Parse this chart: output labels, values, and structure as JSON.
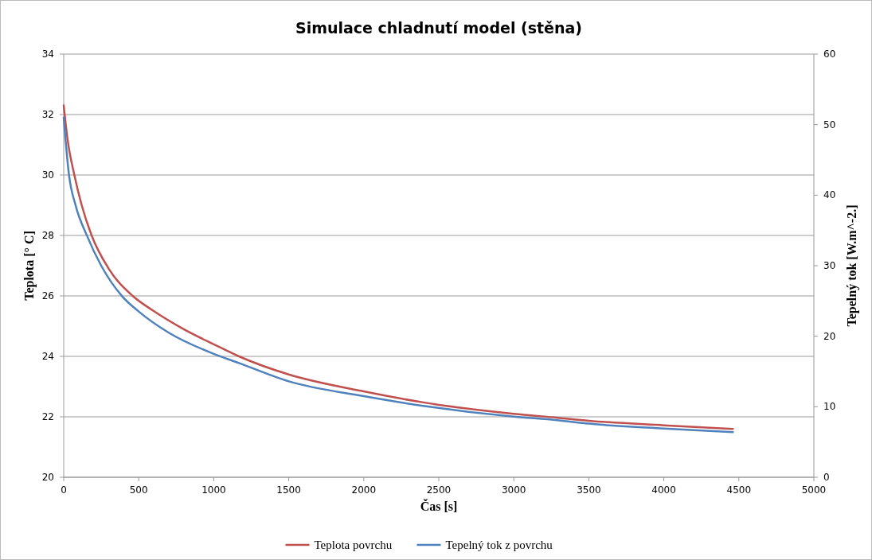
{
  "chart_data": {
    "type": "line",
    "title": "Simulace chladnutí model (stěna)",
    "xlabel": "Čas [s]",
    "ylabel": "Teplota [° C]",
    "y2label": "Tepelný tok [W.m^-2.]",
    "xlim": [
      0,
      5000
    ],
    "xticks": [
      0,
      500,
      1000,
      1500,
      2000,
      2500,
      3000,
      3500,
      4000,
      4500,
      5000
    ],
    "ylim": [
      20,
      34
    ],
    "yticks": [
      20,
      22,
      24,
      26,
      28,
      30,
      32,
      34
    ],
    "y2lim": [
      0,
      60
    ],
    "y2ticks": [
      0,
      10,
      20,
      30,
      40,
      50,
      60
    ],
    "grid": "y",
    "legend": "bottom",
    "marker": "none",
    "line_style": "solid",
    "series": [
      {
        "name": "Teplota povrchu",
        "color": "#c0504d",
        "x": [
          0,
          25,
          71,
          120,
          186,
          300,
          460,
          600,
          800,
          1000,
          1168,
          1500,
          2000,
          2405,
          3000,
          3291,
          3500,
          4000,
          4460
        ],
        "values": [
          32.3,
          31.2,
          30,
          29,
          28,
          26.9,
          26,
          25.5,
          24.9,
          24.4,
          24,
          23.4,
          22.84,
          22.47,
          22.1,
          21.97,
          21.87,
          21.72,
          21.6
        ]
      },
      {
        "name": "Tepelný tok z povrchu",
        "color": "#4f81bd",
        "axis": "y2",
        "x": [
          0,
          35,
          80,
          154,
          250,
          388,
          500,
          700,
          1000,
          1168,
          1500,
          2000,
          2405,
          3000,
          3291,
          3500,
          4000,
          4460
        ],
        "values": [
          51,
          42.9,
          38.5,
          34.3,
          30,
          25.7,
          23.5,
          20.5,
          17.5,
          16.2,
          13.6,
          11.5,
          10.1,
          8.6,
          8.1,
          7.6,
          6.9,
          6.4
        ]
      }
    ]
  }
}
